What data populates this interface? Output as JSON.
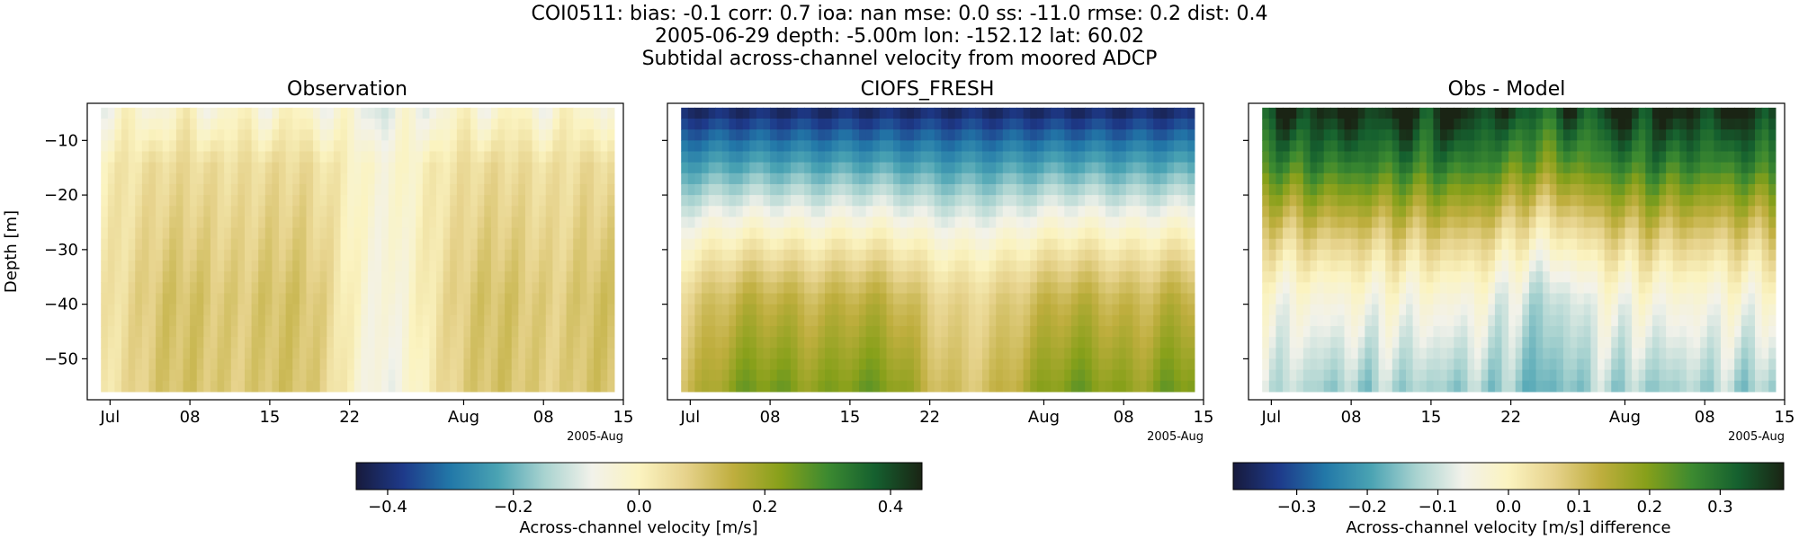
{
  "figure": {
    "title_lines": [
      "COI0511: bias: -0.1  corr: 0.7  ioa: nan  mse: 0.0  ss: -11.0  rmse: 0.2  dist: 0.4",
      "2005-06-29 depth: -5.00m lon: -152.12 lat: 60.02",
      "Subtidal across-channel velocity from moored ADCP"
    ]
  },
  "chart_data": [
    {
      "type": "heatmap",
      "title": "Observation",
      "ylabel": "Depth [m]",
      "xlabel": "",
      "x_ticks": [
        "Jul",
        "08",
        "15",
        "22",
        "Aug",
        "08",
        "15"
      ],
      "x_offset_label": "2005-Aug",
      "y_ticks": [
        "−10",
        "−20",
        "−30",
        "−40",
        "−50"
      ],
      "x_tick_values": [
        "2005-07-01",
        "2005-07-08",
        "2005-07-15",
        "2005-07-22",
        "2005-08-01",
        "2005-08-08",
        "2005-08-15"
      ],
      "y_tick_values": [
        -10,
        -20,
        -30,
        -40,
        -50
      ],
      "xlim": [
        "2005-06-29",
        "2005-08-15"
      ],
      "ylim": [
        -57.5,
        -3.2
      ],
      "depth_range": [
        -56,
        -4
      ],
      "colormap": "delta",
      "clim": [
        -0.45,
        0.45
      ],
      "field": "observation",
      "features": [
        {
          "time": "2005-07-06",
          "depth": -32,
          "value": 0.1
        },
        {
          "time": "2005-07-16",
          "depth": -35,
          "value": 0.12
        },
        {
          "time": "2005-07-25",
          "depth": -30,
          "value": -0.06
        },
        {
          "time": "2005-08-03",
          "depth": -30,
          "value": 0.12
        },
        {
          "time": "2005-08-13",
          "depth": -30,
          "value": 0.12
        },
        {
          "time": "2005-07-10",
          "depth": -6,
          "value": -0.1
        }
      ]
    },
    {
      "type": "heatmap",
      "title": "CIOFS_FRESH",
      "x_ticks": [
        "Jul",
        "08",
        "15",
        "22",
        "Aug",
        "08",
        "15"
      ],
      "x_offset_label": "2005-Aug",
      "x_tick_values": [
        "2005-07-01",
        "2005-07-08",
        "2005-07-15",
        "2005-07-22",
        "2005-08-01",
        "2005-08-08",
        "2005-08-15"
      ],
      "xlim": [
        "2005-06-29",
        "2005-08-15"
      ],
      "ylim": [
        -57.5,
        -3.2
      ],
      "depth_range": [
        -56,
        -4
      ],
      "colormap": "delta",
      "clim": [
        -0.45,
        0.45
      ],
      "field": "model",
      "features": [
        {
          "time": "2005-07-15",
          "depth": -4,
          "value": -0.42
        },
        {
          "time": "2005-07-18",
          "depth": -50,
          "value": 0.22
        },
        {
          "time": "2005-08-04",
          "depth": -50,
          "value": 0.25
        },
        {
          "time": "2005-07-01",
          "depth": -45,
          "value": 0.1
        },
        {
          "time": "2005-07-25",
          "depth": -45,
          "value": 0.03
        }
      ]
    },
    {
      "type": "heatmap",
      "title": "Obs - Model",
      "x_ticks": [
        "Jul",
        "08",
        "15",
        "22",
        "Aug",
        "08",
        "15"
      ],
      "x_offset_label": "2005-Aug",
      "x_tick_values": [
        "2005-07-01",
        "2005-07-08",
        "2005-07-15",
        "2005-07-22",
        "2005-08-01",
        "2005-08-08",
        "2005-08-15"
      ],
      "xlim": [
        "2005-06-29",
        "2005-08-15"
      ],
      "ylim": [
        -57.5,
        -3.2
      ],
      "depth_range": [
        -56,
        -4
      ],
      "colormap": "delta",
      "clim": [
        -0.39,
        0.39
      ],
      "field": "difference",
      "features": [
        {
          "time": "2005-07-15",
          "depth": -4,
          "value": 0.38
        },
        {
          "time": "2005-07-17",
          "depth": -50,
          "value": -0.14
        },
        {
          "time": "2005-08-04",
          "depth": -50,
          "value": -0.16
        },
        {
          "time": "2005-07-10",
          "depth": -25,
          "value": 0.15
        }
      ]
    }
  ],
  "colorbars": [
    {
      "label": "Across-channel velocity [m/s]",
      "ticks": [
        "−0.4",
        "−0.2",
        "0.0",
        "0.2",
        "0.4"
      ],
      "tick_values": [
        -0.4,
        -0.2,
        0.0,
        0.2,
        0.4
      ],
      "range": [
        -0.45,
        0.45
      ]
    },
    {
      "label": "Across-channel velocity [m/s] difference",
      "ticks": [
        "−0.3",
        "−0.2",
        "−0.1",
        "0.0",
        "0.1",
        "0.2",
        "0.3"
      ],
      "tick_values": [
        -0.3,
        -0.2,
        -0.1,
        0.0,
        0.1,
        0.2,
        0.3
      ],
      "range": [
        -0.39,
        0.39
      ]
    }
  ],
  "colors": {
    "colormap_stops": [
      "#171a3c",
      "#1e3a8a",
      "#2278a8",
      "#4aa3b3",
      "#a9d3d0",
      "#f2f2ea",
      "#fbf3c0",
      "#e6d28b",
      "#bfae3e",
      "#87a01a",
      "#3c8a30",
      "#15602f",
      "#1a2414"
    ]
  }
}
